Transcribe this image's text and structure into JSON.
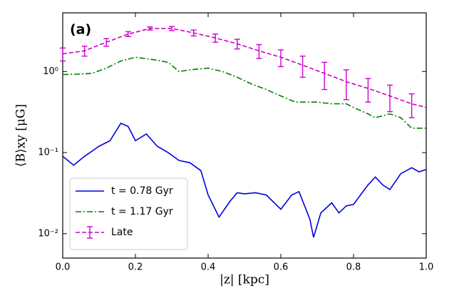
{
  "chart_data": {
    "type": "line",
    "annotation": "(a)",
    "xlabel": "|z| [kpc]",
    "ylabel": "⟨B⟩xy [μG]",
    "xlim": [
      0,
      1
    ],
    "xticks": [
      {
        "value": 0,
        "label": "0.0"
      },
      0.2,
      0.4,
      0.6,
      0.8,
      {
        "value": 1,
        "label": "1.0"
      }
    ],
    "ylim": [
      0.005,
      5.3
    ],
    "yticks": [
      {
        "value": 0.01,
        "label": "10⁻²"
      },
      {
        "value": 0.1,
        "label": "10⁻¹"
      },
      {
        "value": 1,
        "label": "10⁰"
      }
    ],
    "log_y": true,
    "legend": "lower left",
    "series": [
      {
        "name": "t = 0.78 Gyr",
        "color": "#0000dd",
        "style": "solid",
        "x": [
          0,
          0.03,
          0.06,
          0.1,
          0.13,
          0.16,
          0.18,
          0.2,
          0.23,
          0.26,
          0.29,
          0.32,
          0.35,
          0.38,
          0.4,
          0.43,
          0.46,
          0.48,
          0.5,
          0.53,
          0.56,
          0.6,
          0.63,
          0.65,
          0.68,
          0.69,
          0.71,
          0.74,
          0.76,
          0.78,
          0.8,
          0.84,
          0.86,
          0.88,
          0.9,
          0.93,
          0.96,
          0.98,
          1.0
        ],
        "values": [
          0.09,
          0.07,
          0.09,
          0.12,
          0.14,
          0.23,
          0.21,
          0.14,
          0.17,
          0.12,
          0.1,
          0.08,
          0.075,
          0.06,
          0.03,
          0.016,
          0.025,
          0.032,
          0.031,
          0.032,
          0.03,
          0.02,
          0.03,
          0.033,
          0.015,
          0.009,
          0.018,
          0.024,
          0.018,
          0.022,
          0.023,
          0.04,
          0.05,
          0.04,
          0.035,
          0.055,
          0.065,
          0.058,
          0.062
        ]
      },
      {
        "name": "t = 1.17 Gyr",
        "color": "#008000",
        "style": "dashdot",
        "x": [
          0,
          0.05,
          0.08,
          0.12,
          0.16,
          0.2,
          0.25,
          0.29,
          0.32,
          0.35,
          0.4,
          0.44,
          0.48,
          0.52,
          0.56,
          0.6,
          0.64,
          0.7,
          0.74,
          0.78,
          0.8,
          0.84,
          0.86,
          0.9,
          0.93,
          0.96,
          1.0
        ],
        "values": [
          0.92,
          0.93,
          0.95,
          1.1,
          1.35,
          1.5,
          1.4,
          1.3,
          1.0,
          1.05,
          1.1,
          1.0,
          0.85,
          0.7,
          0.6,
          0.5,
          0.42,
          0.42,
          0.4,
          0.4,
          0.36,
          0.3,
          0.27,
          0.3,
          0.27,
          0.2,
          0.2
        ]
      },
      {
        "name": "Late",
        "color": "#cc00cc",
        "style": "dashed",
        "x": [
          0,
          0.06,
          0.12,
          0.18,
          0.24,
          0.3,
          0.36,
          0.42,
          0.48,
          0.54,
          0.6,
          0.66,
          0.72,
          0.78,
          0.84,
          0.9,
          0.96,
          1.0
        ],
        "values": [
          1.65,
          1.8,
          2.3,
          2.9,
          3.4,
          3.4,
          3.0,
          2.6,
          2.2,
          1.8,
          1.5,
          1.2,
          0.95,
          0.75,
          0.62,
          0.5,
          0.4,
          0.36
        ],
        "errors": [
          0.3,
          0.25,
          0.25,
          0.2,
          0.15,
          0.2,
          0.25,
          0.3,
          0.3,
          0.35,
          0.35,
          0.35,
          0.35,
          0.3,
          0.2,
          0.18,
          0.13,
          null
        ]
      }
    ]
  }
}
